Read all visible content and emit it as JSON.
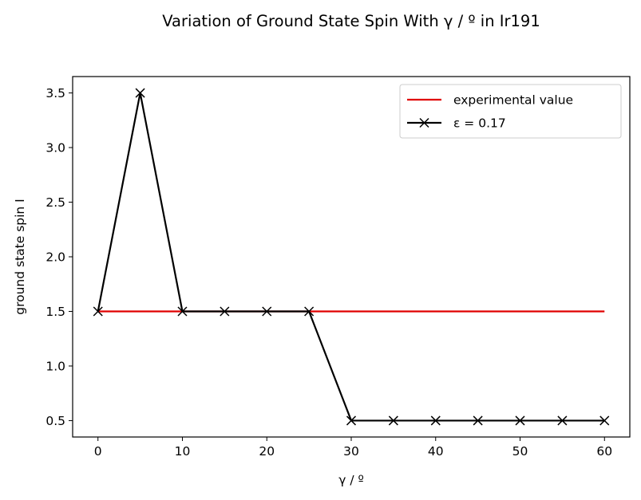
{
  "chart_data": {
    "type": "line",
    "title": "Variation of Ground State Spin With γ / º in Ir191",
    "xlabel": "γ / º",
    "ylabel": "ground state spin I",
    "xlim": [
      -3,
      63
    ],
    "ylim": [
      0.35,
      3.65
    ],
    "xticks": [
      0,
      10,
      20,
      30,
      40,
      50,
      60
    ],
    "yticks": [
      0.5,
      1.0,
      1.5,
      2.0,
      2.5,
      3.0,
      3.5
    ],
    "xtick_labels": [
      "0",
      "10",
      "20",
      "30",
      "40",
      "50",
      "60"
    ],
    "ytick_labels": [
      "0.5",
      "1.0",
      "1.5",
      "2.0",
      "2.5",
      "3.0",
      "3.5"
    ],
    "grid": false,
    "legend_position": "top-right",
    "series": [
      {
        "name": "experimental value",
        "color": "#e00000",
        "marker": "none",
        "x": [
          0,
          60
        ],
        "y": [
          1.5,
          1.5
        ]
      },
      {
        "name": "ε = 0.17",
        "color": "#000000",
        "marker": "x",
        "x": [
          0,
          5,
          10,
          15,
          20,
          25,
          30,
          35,
          40,
          45,
          50,
          55,
          60
        ],
        "y": [
          1.5,
          3.5,
          1.5,
          1.5,
          1.5,
          1.5,
          0.5,
          0.5,
          0.5,
          0.5,
          0.5,
          0.5,
          0.5
        ]
      }
    ]
  }
}
